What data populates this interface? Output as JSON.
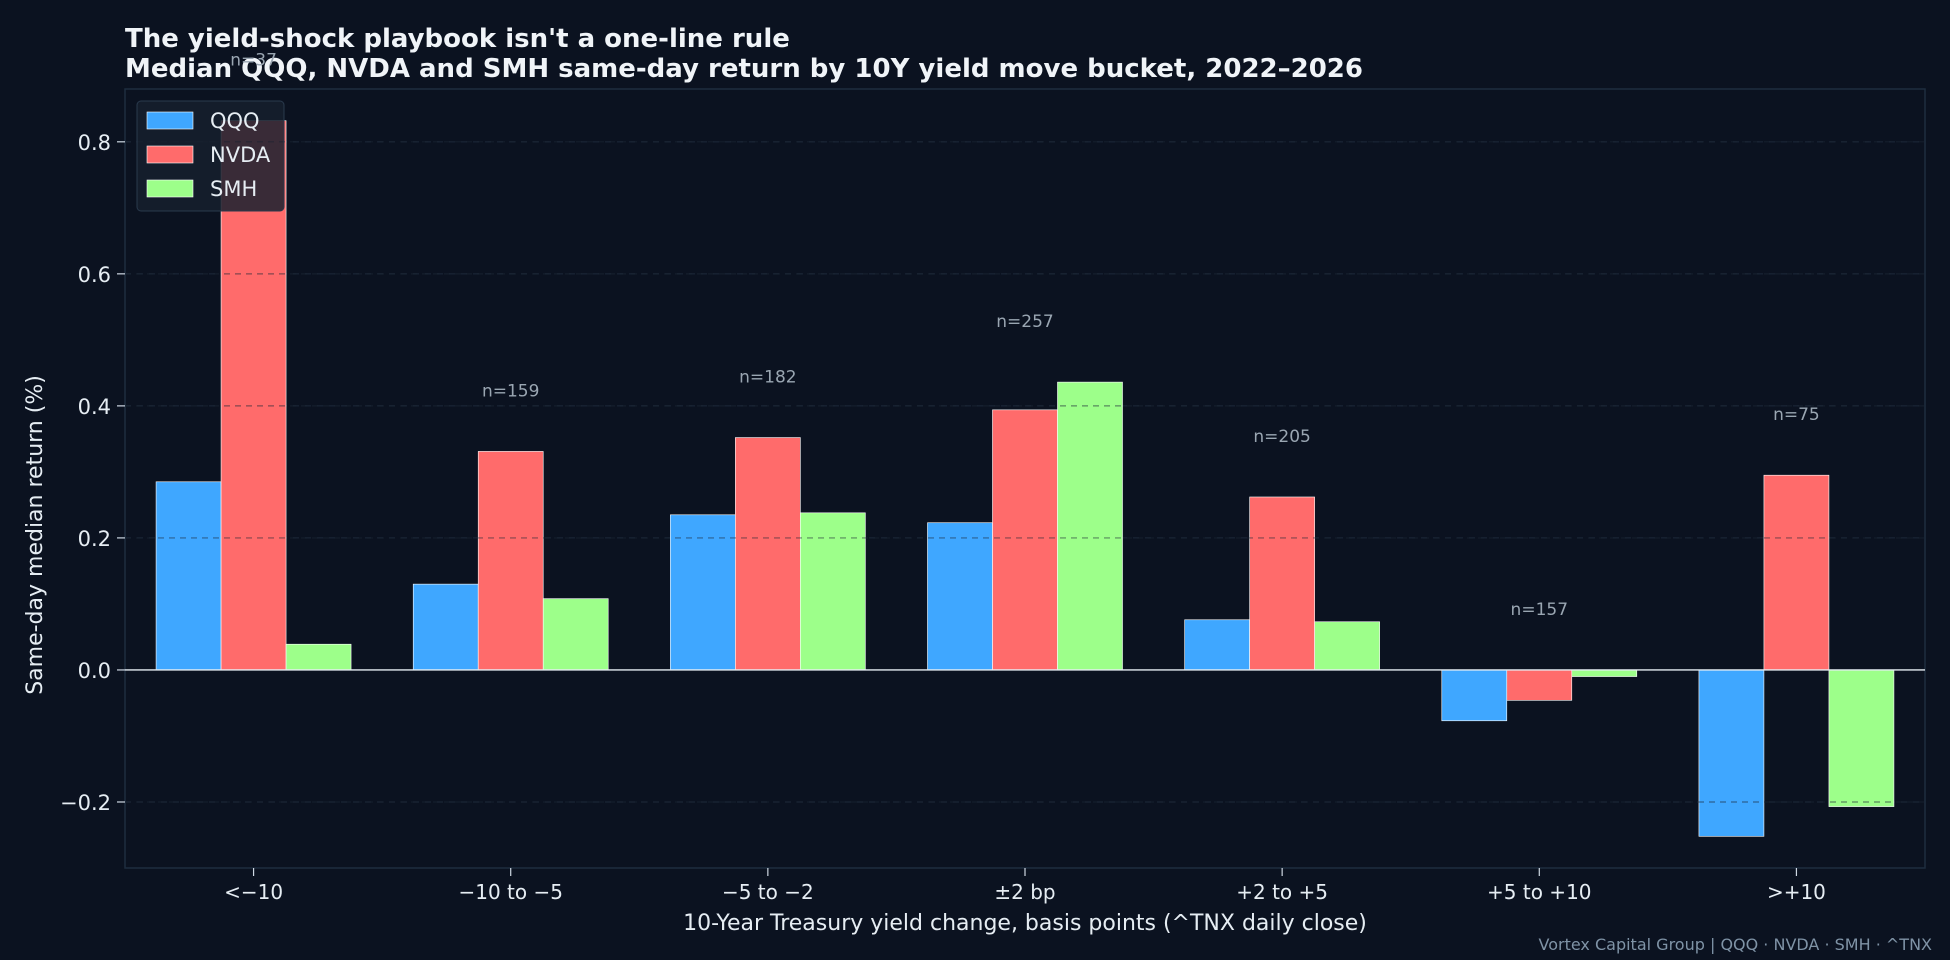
{
  "colors": {
    "background": "#0b1220",
    "text": "#e6edf3",
    "muted": "#9aa6b2",
    "credit": "#7f93a6",
    "qqq": "#3fa7ff",
    "nvda": "#ff6b6b",
    "smh": "#9dff8a"
  },
  "credit": "Vortex Capital Group  |  QQQ · NVDA · SMH · ^TNX",
  "chart_data": {
    "type": "bar",
    "title": "The yield-shock playbook isn't a one-line rule",
    "subtitle": "Median QQQ, NVDA and SMH same-day return by 10Y yield move bucket, 2022–2026",
    "xlabel": "10-Year Treasury yield change, basis points (^TNX daily close)",
    "ylabel": "Same-day median return (%)",
    "ylim": [
      -0.3,
      0.88
    ],
    "yticks": [
      -0.2,
      0.0,
      0.2,
      0.4,
      0.6,
      0.8
    ],
    "ytick_labels": [
      "−0.2",
      "0.0",
      "0.2",
      "0.4",
      "0.6",
      "0.8"
    ],
    "grid": true,
    "legend_position": "top-left",
    "categories": [
      "<−10",
      "−10 to −5",
      "−5 to −2",
      "±2 bp",
      "+2 to +5",
      "+5 to +10",
      ">+10"
    ],
    "n_labels": [
      "n=37",
      "n=159",
      "n=182",
      "n=257",
      "n=205",
      "n=157",
      "n=75"
    ],
    "series": [
      {
        "name": "QQQ",
        "color": "#3fa7ff",
        "values": [
          0.285,
          0.13,
          0.235,
          0.223,
          0.076,
          -0.077,
          -0.252
        ]
      },
      {
        "name": "NVDA",
        "color": "#ff6b6b",
        "values": [
          0.832,
          0.331,
          0.352,
          0.394,
          0.262,
          -0.046,
          0.295
        ]
      },
      {
        "name": "SMH",
        "color": "#9dff8a",
        "values": [
          0.039,
          0.108,
          0.238,
          0.436,
          0.073,
          -0.01,
          -0.207
        ]
      }
    ]
  }
}
